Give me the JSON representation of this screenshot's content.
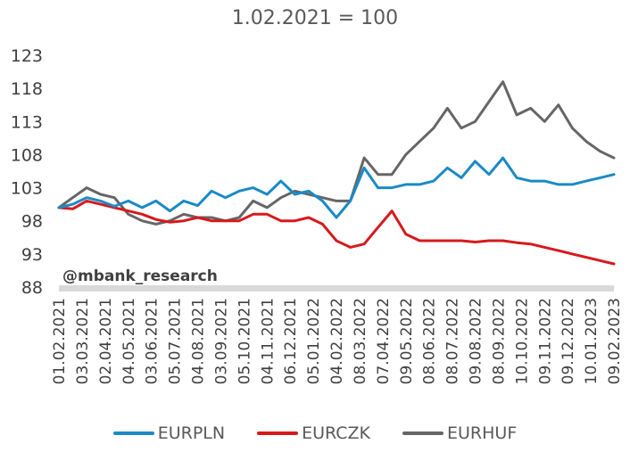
{
  "chart_data": {
    "type": "line",
    "title": "1.02.2021 = 100",
    "watermark": "@mbank_research",
    "ylim": [
      88,
      123
    ],
    "yticks": [
      123,
      118,
      113,
      108,
      103,
      98,
      93,
      88
    ],
    "xlabels": [
      "01.02.2021",
      "03.03.2021",
      "02.04.2021",
      "04.05.2021",
      "03.06.2021",
      "05.07.2021",
      "04.08.2021",
      "03.09.2021",
      "05.10.2021",
      "04.11.2021",
      "06.12.2021",
      "05.01.2022",
      "04.02.2022",
      "08.03.2022",
      "07.04.2022",
      "09.05.2022",
      "08.06.2022",
      "08.07.2022",
      "09.08.2022",
      "08.09.2022",
      "10.10.2022",
      "09.11.2022",
      "09.12.2022",
      "10.01.2023",
      "09.02.2023"
    ],
    "grid": false,
    "legend_position": "bottom",
    "series": [
      {
        "name": "EURPLN",
        "color": "#1A8AC6",
        "values": [
          100,
          100.5,
          101.5,
          101,
          100.2,
          101,
          100,
          101,
          99.5,
          101,
          100.3,
          102.5,
          101.5,
          102.5,
          103,
          102,
          104,
          102,
          102.5,
          101,
          98.5,
          101,
          106,
          103,
          103,
          103.5,
          103.5,
          104,
          106,
          104.5,
          107,
          105,
          107.5,
          104.5,
          104,
          104,
          103.5,
          103.5,
          104,
          104.5,
          105
        ]
      },
      {
        "name": "EURCZK",
        "color": "#D7191C",
        "values": [
          100,
          99.8,
          101,
          100.5,
          100,
          99.5,
          99,
          98.2,
          97.8,
          98,
          98.5,
          98,
          98,
          98,
          99,
          99,
          98,
          98,
          98.5,
          97.5,
          95,
          94,
          94.5,
          97,
          99.5,
          96,
          95,
          95,
          95,
          95,
          94.8,
          95,
          95,
          94.7,
          94.5,
          94,
          93.5,
          93,
          92.5,
          92,
          91.5
        ]
      },
      {
        "name": "EURHUF",
        "color": "#666666",
        "values": [
          100,
          101.5,
          103,
          102,
          101.5,
          99,
          98,
          97.5,
          98,
          99,
          98.5,
          98.5,
          98,
          98.5,
          101,
          100,
          101.5,
          102.5,
          102,
          101.5,
          101,
          101,
          107.5,
          105,
          105,
          108,
          110,
          112,
          115,
          112,
          113,
          116,
          119,
          114,
          115,
          113,
          115.5,
          112,
          110,
          108.5,
          107.5
        ]
      }
    ]
  }
}
